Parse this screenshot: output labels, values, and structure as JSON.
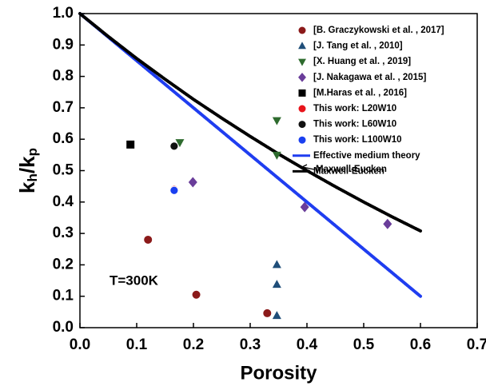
{
  "chart_data": {
    "type": "scatter",
    "xlabel": "Porosity",
    "ylabel": [
      "k",
      "h",
      "/k",
      "p"
    ],
    "xlim": [
      0,
      0.7
    ],
    "ylim": [
      0,
      1.0
    ],
    "xticks": [
      {
        "value": 0,
        "label": "0.0"
      },
      0.1,
      0.2,
      0.3,
      0.4,
      0.5,
      0.6,
      0.7
    ],
    "yticks": [
      {
        "value": 0,
        "label": "0.0"
      },
      0.1,
      0.2,
      0.3,
      0.4,
      0.5,
      0.6,
      0.7,
      0.8,
      0.9,
      {
        "value": 1.0,
        "label": "1.0"
      }
    ],
    "annotations": [
      "T=300K",
      "Maxwell-Eucken"
    ],
    "series": [
      {
        "name": "[B. Graczykowski et al. , 2017]",
        "color": "#8b1a1a",
        "marker": "circle",
        "x": [
          0.12,
          0.205,
          0.33
        ],
        "values": [
          0.28,
          0.105,
          0.046
        ]
      },
      {
        "name": "[J. Tang et al. , 2010]",
        "color": "#1f4e79",
        "marker": "triangle-up",
        "x": [
          0.347,
          0.347,
          0.347
        ],
        "values": [
          0.2,
          0.137,
          0.038
        ]
      },
      {
        "name": "[X. Huang et al. , 2019]",
        "color": "#2e6b2e",
        "marker": "triangle-down",
        "x": [
          0.176,
          0.347,
          0.347
        ],
        "values": [
          0.59,
          0.66,
          0.55
        ]
      },
      {
        "name": "[J. Nakagawa et al. , 2015]",
        "color": "#6a3d9a",
        "marker": "diamond",
        "x": [
          0.199,
          0.396,
          0.542
        ],
        "values": [
          0.463,
          0.384,
          0.33
        ]
      },
      {
        "name": "[M.Haras et al. , 2016]",
        "color": "#000000",
        "marker": "square",
        "x": [
          0.089
        ],
        "values": [
          0.583
        ]
      },
      {
        "name": "This work: L20W10",
        "color": "#e8141b",
        "marker": "circle",
        "x": [
          0.166
        ],
        "values": [
          0.44
        ]
      },
      {
        "name": "This work: L60W10",
        "color": "#111111",
        "marker": "circle",
        "x": [
          0.166
        ],
        "values": [
          0.578
        ]
      },
      {
        "name": "This work: L100W10",
        "color": "#1a3ff0",
        "marker": "circle",
        "x": [
          0.166
        ],
        "values": [
          0.437
        ]
      },
      {
        "name": "Effective medium theory",
        "color": "#1f3df0",
        "marker": "line",
        "x": [
          0,
          0.05,
          0.1,
          0.15,
          0.2,
          0.25,
          0.3,
          0.35,
          0.4,
          0.45,
          0.5,
          0.55,
          0.6
        ],
        "values": [
          1.0,
          0.925,
          0.85,
          0.775,
          0.7,
          0.625,
          0.55,
          0.475,
          0.4,
          0.325,
          0.25,
          0.175,
          0.1
        ]
      },
      {
        "name": "Maxwell-Eucken",
        "color": "#000000",
        "marker": "line",
        "x": [
          0,
          0.05,
          0.1,
          0.15,
          0.2,
          0.25,
          0.3,
          0.35,
          0.4,
          0.45,
          0.5,
          0.55,
          0.6
        ],
        "values": [
          1.0,
          0.927,
          0.857,
          0.791,
          0.727,
          0.667,
          0.609,
          0.553,
          0.5,
          0.449,
          0.4,
          0.353,
          0.308
        ]
      }
    ]
  }
}
